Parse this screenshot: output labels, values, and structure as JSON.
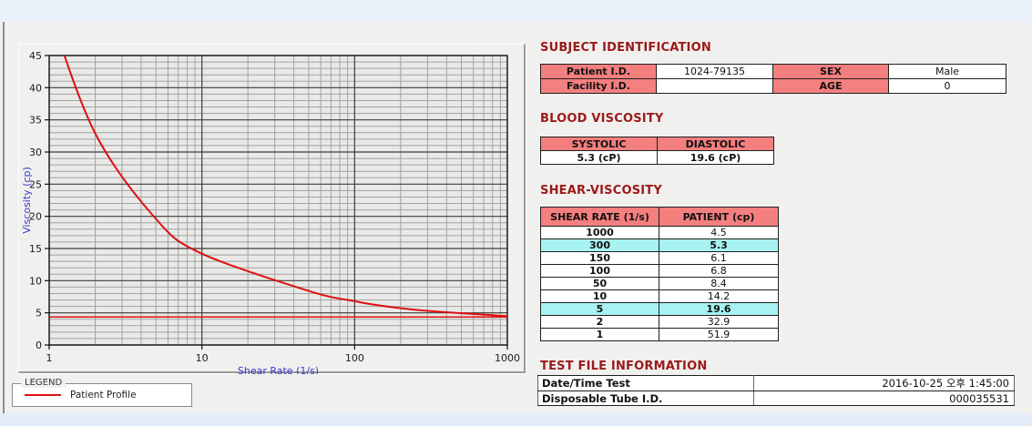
{
  "colors": {
    "page_bg": "#ebf1fb",
    "panel_bg": "#f0f0ee",
    "header_pink": "#f47f7f",
    "highlight_cyan": "#a8f2f2",
    "title_red": "#9a1a1a",
    "series_red": "#dd1111",
    "axis_label_blue": "#3939cf"
  },
  "chart_data": {
    "type": "line",
    "title": "",
    "xlabel": "Shear Rate (1/s)",
    "ylabel": "Viscosity (cp)",
    "x_scale": "log",
    "xlim": [
      1,
      1000
    ],
    "ylim": [
      0,
      45
    ],
    "y_major_step": 5,
    "y_minor_step": 1,
    "x_major_ticks": [
      1,
      10,
      100,
      1000
    ],
    "grid": true,
    "legend_position": "bottom-left-outside",
    "series": [
      {
        "name": "Patient Profile",
        "color": "#dd1111",
        "x": [
          1,
          2,
          5,
          10,
          50,
          100,
          150,
          300,
          1000
        ],
        "y": [
          51.9,
          32.9,
          19.6,
          14.2,
          8.4,
          6.8,
          6.1,
          5.3,
          4.5
        ]
      }
    ],
    "reference_line_y": 4.35,
    "legend": {
      "title": "LEGEND",
      "entries": [
        {
          "label": "Patient Profile",
          "color": "#dd1111"
        }
      ]
    }
  },
  "subject_identification": {
    "title": "SUBJECT IDENTIFICATION",
    "fields": [
      {
        "label": "Patient I.D.",
        "value": "1024-79135"
      },
      {
        "label": "SEX",
        "value": "Male"
      },
      {
        "label": "Facility I.D.",
        "value": ""
      },
      {
        "label": "AGE",
        "value": "0"
      }
    ]
  },
  "blood_viscosity": {
    "title": "BLOOD VISCOSITY",
    "headers": [
      "SYSTOLIC",
      "DIASTOLIC"
    ],
    "values": [
      "5.3 (cP)",
      "19.6 (cP)"
    ]
  },
  "shear_viscosity": {
    "title": "SHEAR-VISCOSITY",
    "headers": [
      "SHEAR RATE (1/s)",
      "PATIENT (cp)"
    ],
    "rows": [
      {
        "shear": "1000",
        "patient": "4.5",
        "highlight": false
      },
      {
        "shear": "300",
        "patient": "5.3",
        "highlight": true
      },
      {
        "shear": "150",
        "patient": "6.1",
        "highlight": false
      },
      {
        "shear": "100",
        "patient": "6.8",
        "highlight": false
      },
      {
        "shear": "50",
        "patient": "8.4",
        "highlight": false
      },
      {
        "shear": "10",
        "patient": "14.2",
        "highlight": false
      },
      {
        "shear": "5",
        "patient": "19.6",
        "highlight": true
      },
      {
        "shear": "2",
        "patient": "32.9",
        "highlight": false
      },
      {
        "shear": "1",
        "patient": "51.9",
        "highlight": false
      }
    ]
  },
  "test_file_information": {
    "title": "TEST FILE INFORMATION",
    "rows": [
      {
        "label": "Date/Time Test",
        "value": "2016-10-25  오후 1:45:00"
      },
      {
        "label": "Disposable Tube I.D.",
        "value": "000035531"
      }
    ]
  }
}
